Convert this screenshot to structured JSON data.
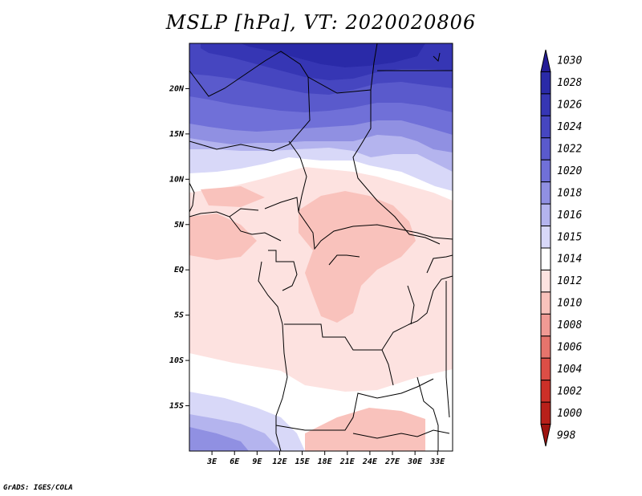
{
  "title": "MSLP [hPa], VT: 2020020806",
  "credit": "GrADS: IGES/COLA",
  "map": {
    "lon_range": [
      0,
      35
    ],
    "lat_range": [
      -20,
      25
    ],
    "lon_ticks": [
      {
        "value": 3,
        "label": "3E"
      },
      {
        "value": 6,
        "label": "6E"
      },
      {
        "value": 9,
        "label": "9E"
      },
      {
        "value": 12,
        "label": "12E"
      },
      {
        "value": 15,
        "label": "15E"
      },
      {
        "value": 18,
        "label": "18E"
      },
      {
        "value": 21,
        "label": "21E"
      },
      {
        "value": 24,
        "label": "24E"
      },
      {
        "value": 27,
        "label": "27E"
      },
      {
        "value": 30,
        "label": "30E"
      },
      {
        "value": 33,
        "label": "33E"
      }
    ],
    "lat_ticks": [
      {
        "value": 20,
        "label": "20N"
      },
      {
        "value": 15,
        "label": "15N"
      },
      {
        "value": 10,
        "label": "10N"
      },
      {
        "value": 5,
        "label": "5N"
      },
      {
        "value": 0,
        "label": "EQ"
      },
      {
        "value": -5,
        "label": "5S"
      },
      {
        "value": -10,
        "label": "10S"
      },
      {
        "value": -15,
        "label": "15S"
      }
    ]
  },
  "colorbar": {
    "levels": [
      {
        "label": "1030",
        "color": "#241c96"
      },
      {
        "label": "1028",
        "color": "#2a2aa8"
      },
      {
        "label": "1026",
        "color": "#3636b4"
      },
      {
        "label": "1024",
        "color": "#4646c0"
      },
      {
        "label": "1022",
        "color": "#5a5acc"
      },
      {
        "label": "1020",
        "color": "#7070d8"
      },
      {
        "label": "1018",
        "color": "#9090e2"
      },
      {
        "label": "1016",
        "color": "#b4b4ee"
      },
      {
        "label": "1015",
        "color": "#d8d8f8"
      },
      {
        "label": "1014",
        "color": "#ffffff"
      },
      {
        "label": "1012",
        "color": "#fde2e0"
      },
      {
        "label": "1010",
        "color": "#f9c2bc"
      },
      {
        "label": "1008",
        "color": "#f09a94"
      },
      {
        "label": "1006",
        "color": "#e6746c"
      },
      {
        "label": "1004",
        "color": "#dc4e46"
      },
      {
        "label": "1002",
        "color": "#cc3028"
      },
      {
        "label": "1000",
        "color": "#b8201a"
      },
      {
        "label": "998",
        "color": "#9e1410"
      }
    ]
  },
  "field_bands": [
    {
      "level": "1028",
      "color": "#2a2aa8"
    },
    {
      "level": "1026",
      "color": "#3636b4"
    },
    {
      "level": "1024",
      "color": "#4646c0"
    },
    {
      "level": "1022",
      "color": "#5a5acc"
    },
    {
      "level": "1020",
      "color": "#7070d8"
    },
    {
      "level": "1018",
      "color": "#9090e2"
    },
    {
      "level": "1016",
      "color": "#b4b4ee"
    },
    {
      "level": "1015",
      "color": "#d8d8f8"
    },
    {
      "level": "1014",
      "color": "#ffffff"
    },
    {
      "level": "1012",
      "color": "#fde2e0"
    },
    {
      "level": "1010",
      "color": "#f9c2bc"
    }
  ]
}
